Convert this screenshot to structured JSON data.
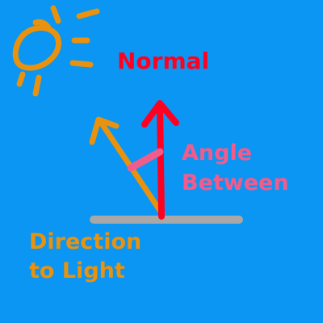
{
  "colors": {
    "background": "#0a96f2",
    "normal": "#ff0022",
    "light": "#e8920f",
    "angle": "#f25c8c",
    "surface": "#a8a8a8"
  },
  "labels": {
    "normal": "Normal",
    "angle_line1": "Angle",
    "angle_line2": "Between",
    "light_line1": "Direction",
    "light_line2": "to Light"
  },
  "icons": {
    "sun": "sun-icon"
  }
}
